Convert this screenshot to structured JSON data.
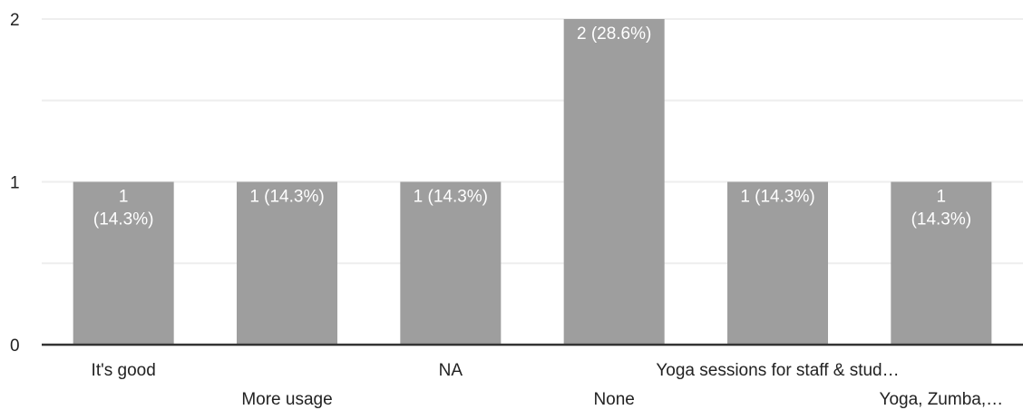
{
  "chart_data": {
    "type": "bar",
    "categories": [
      "It's good",
      "More usage",
      "NA",
      "None",
      "Yoga sessions for staff & stud…",
      "Yoga, Zumba,…"
    ],
    "values": [
      1,
      1,
      1,
      2,
      1,
      1
    ],
    "data_labels": [
      [
        "1",
        "(14.3%)"
      ],
      [
        "1 (14.3%)"
      ],
      [
        "1 (14.3%)"
      ],
      [
        "2 (28.6%)"
      ],
      [
        "1 (14.3%)"
      ],
      [
        "1",
        "(14.3%)"
      ]
    ],
    "ylim": [
      0,
      2
    ],
    "yticks": [
      "0",
      "1",
      "2"
    ],
    "grid": true,
    "bar_color": "#9e9e9e",
    "gridline_color": "#eeeeee",
    "axis_color": "#333333"
  }
}
